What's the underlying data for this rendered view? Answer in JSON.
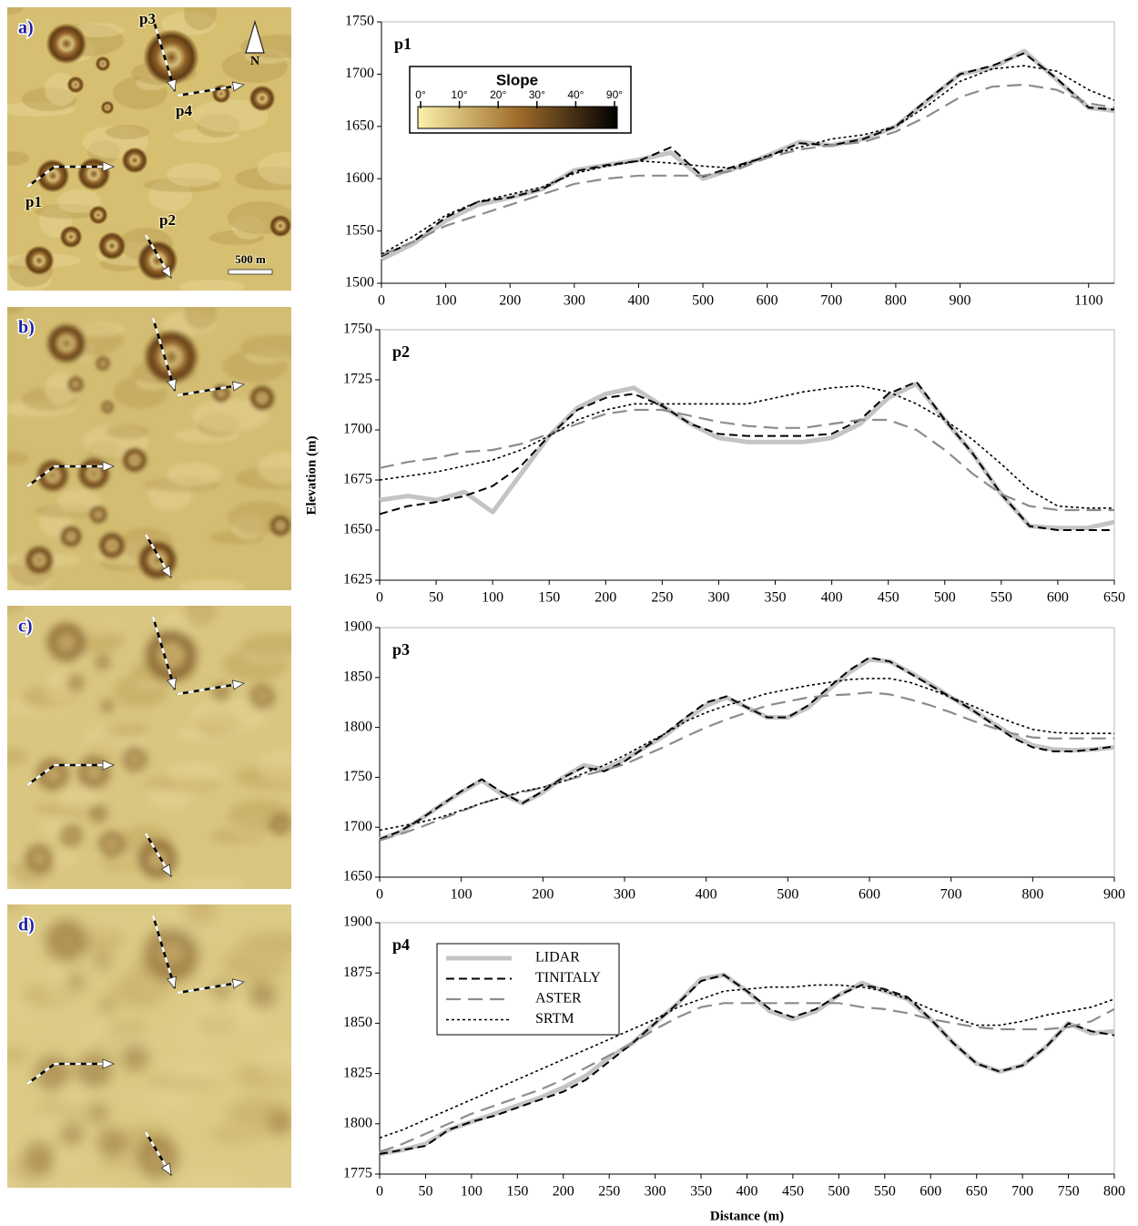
{
  "maps": [
    {
      "label": "a)",
      "annotations": [
        "p3",
        "p4",
        "p1",
        "p2",
        "N",
        "500 m"
      ]
    },
    {
      "label": "b)"
    },
    {
      "label": "c)"
    },
    {
      "label": "d)"
    }
  ],
  "chart_data": [
    {
      "type": "line",
      "title": "p1",
      "x": [
        0,
        50,
        100,
        150,
        200,
        250,
        300,
        350,
        400,
        450,
        500,
        550,
        600,
        650,
        700,
        750,
        800,
        850,
        900,
        950,
        1000,
        1050,
        1100,
        1140
      ],
      "xlim": [
        0,
        1140
      ],
      "xticks": [
        0,
        100,
        200,
        300,
        400,
        500,
        600,
        700,
        800,
        900,
        1100
      ],
      "ylim": [
        1500,
        1750
      ],
      "yticks": [
        1500,
        1550,
        1600,
        1650,
        1700,
        1750
      ],
      "colorbar": {
        "title": "Slope",
        "ticks": [
          "0°",
          "10°",
          "20°",
          "30°",
          "40°",
          "90°"
        ],
        "colors": [
          "#fbf2aa",
          "#a06d2c",
          "#000000"
        ]
      },
      "series": [
        {
          "color": "#c4c4c4",
          "style": "solid",
          "values": [
            1523,
            1538,
            1560,
            1575,
            1582,
            1590,
            1608,
            1613,
            1618,
            1625,
            1600,
            1610,
            1622,
            1635,
            1632,
            1638,
            1650,
            1675,
            1700,
            1706,
            1722,
            1695,
            1668,
            1665
          ]
        },
        {
          "color": "#000000",
          "style": "dashed",
          "values": [
            1526,
            1540,
            1563,
            1578,
            1582,
            1590,
            1607,
            1613,
            1617,
            1630,
            1602,
            1612,
            1621,
            1634,
            1632,
            1638,
            1650,
            1676,
            1700,
            1708,
            1720,
            1696,
            1668,
            1666
          ]
        },
        {
          "color": "#8c8c8c",
          "style": "long-dashed",
          "values": [
            1527,
            1540,
            1555,
            1565,
            1575,
            1585,
            1595,
            1600,
            1603,
            1603,
            1603,
            1608,
            1620,
            1628,
            1632,
            1635,
            1645,
            1660,
            1678,
            1688,
            1690,
            1685,
            1672,
            1668
          ]
        },
        {
          "color": "#000000",
          "style": "dotted",
          "values": [
            1528,
            1545,
            1565,
            1578,
            1585,
            1592,
            1605,
            1612,
            1617,
            1615,
            1612,
            1610,
            1622,
            1630,
            1638,
            1642,
            1650,
            1670,
            1693,
            1705,
            1708,
            1703,
            1685,
            1675
          ]
        }
      ]
    },
    {
      "type": "line",
      "title": "p2",
      "ylabel": "Elevation (m)",
      "x": [
        0,
        25,
        50,
        75,
        100,
        125,
        150,
        175,
        200,
        225,
        250,
        275,
        300,
        325,
        350,
        375,
        400,
        425,
        450,
        475,
        500,
        525,
        550,
        575,
        600,
        625,
        650
      ],
      "xlim": [
        0,
        650
      ],
      "xticks": [
        0,
        50,
        100,
        150,
        200,
        250,
        300,
        350,
        400,
        450,
        500,
        550,
        600,
        650
      ],
      "ylim": [
        1625,
        1750
      ],
      "yticks": [
        1625,
        1650,
        1675,
        1700,
        1725,
        1750
      ],
      "series": [
        {
          "color": "#c4c4c4",
          "style": "solid",
          "values": [
            1665,
            1667,
            1665,
            1669,
            1659,
            1678,
            1697,
            1711,
            1718,
            1721,
            1712,
            1703,
            1696,
            1694,
            1694,
            1694,
            1696,
            1703,
            1716,
            1723,
            1705,
            1688,
            1668,
            1652,
            1651,
            1651,
            1654
          ]
        },
        {
          "color": "#000000",
          "style": "dashed",
          "values": [
            1658,
            1662,
            1664,
            1667,
            1672,
            1682,
            1697,
            1710,
            1716,
            1718,
            1712,
            1703,
            1698,
            1697,
            1697,
            1697,
            1698,
            1705,
            1718,
            1724,
            1705,
            1688,
            1668,
            1652,
            1650,
            1650,
            1650
          ]
        },
        {
          "color": "#8c8c8c",
          "style": "long-dashed",
          "values": [
            1681,
            1684,
            1686,
            1689,
            1690,
            1693,
            1698,
            1703,
            1708,
            1710,
            1710,
            1707,
            1704,
            1702,
            1701,
            1701,
            1703,
            1705,
            1705,
            1700,
            1690,
            1678,
            1668,
            1662,
            1660,
            1660,
            1660
          ]
        },
        {
          "color": "#000000",
          "style": "dotted",
          "values": [
            1675,
            1677,
            1679,
            1682,
            1685,
            1690,
            1697,
            1705,
            1710,
            1713,
            1713,
            1713,
            1713,
            1713,
            1716,
            1719,
            1721,
            1722,
            1719,
            1713,
            1705,
            1695,
            1683,
            1670,
            1662,
            1661,
            1661
          ]
        }
      ]
    },
    {
      "type": "line",
      "title": "p3",
      "x": [
        0,
        25,
        50,
        75,
        100,
        125,
        150,
        175,
        200,
        225,
        250,
        275,
        300,
        325,
        350,
        375,
        400,
        425,
        450,
        475,
        500,
        525,
        550,
        575,
        600,
        625,
        650,
        675,
        700,
        725,
        750,
        775,
        800,
        825,
        850,
        875,
        900
      ],
      "xlim": [
        0,
        900
      ],
      "xticks": [
        0,
        100,
        200,
        300,
        400,
        500,
        600,
        700,
        800,
        900
      ],
      "ylim": [
        1650,
        1900
      ],
      "yticks": [
        1650,
        1700,
        1750,
        1800,
        1850,
        1900
      ],
      "series": [
        {
          "color": "#c4c4c4",
          "style": "solid",
          "values": [
            1688,
            1695,
            1708,
            1722,
            1735,
            1747,
            1733,
            1724,
            1735,
            1750,
            1762,
            1758,
            1768,
            1780,
            1792,
            1808,
            1822,
            1830,
            1820,
            1810,
            1810,
            1820,
            1838,
            1855,
            1868,
            1866,
            1855,
            1843,
            1830,
            1818,
            1805,
            1792,
            1782,
            1778,
            1777,
            1778,
            1780
          ]
        },
        {
          "color": "#000000",
          "style": "dashed",
          "values": [
            1688,
            1696,
            1708,
            1722,
            1736,
            1748,
            1735,
            1724,
            1736,
            1750,
            1760,
            1756,
            1766,
            1780,
            1794,
            1810,
            1825,
            1831,
            1820,
            1810,
            1810,
            1822,
            1840,
            1857,
            1870,
            1866,
            1854,
            1842,
            1830,
            1818,
            1804,
            1790,
            1780,
            1776,
            1776,
            1778,
            1781
          ]
        },
        {
          "color": "#8c8c8c",
          "style": "long-dashed",
          "values": [
            1687,
            1693,
            1700,
            1708,
            1716,
            1724,
            1730,
            1735,
            1740,
            1746,
            1752,
            1757,
            1763,
            1772,
            1781,
            1791,
            1800,
            1808,
            1815,
            1822,
            1826,
            1830,
            1832,
            1833,
            1835,
            1833,
            1828,
            1822,
            1815,
            1807,
            1800,
            1794,
            1790,
            1789,
            1789,
            1789,
            1789
          ]
        },
        {
          "color": "#000000",
          "style": "dotted",
          "values": [
            1697,
            1701,
            1705,
            1710,
            1717,
            1724,
            1730,
            1736,
            1740,
            1746,
            1754,
            1762,
            1772,
            1783,
            1794,
            1806,
            1815,
            1822,
            1828,
            1834,
            1838,
            1842,
            1845,
            1848,
            1849,
            1849,
            1845,
            1838,
            1830,
            1822,
            1813,
            1805,
            1798,
            1795,
            1794,
            1794,
            1794
          ]
        }
      ]
    },
    {
      "type": "line",
      "title": "p4",
      "xlabel": "Distance (m)",
      "legend": "upper left",
      "x": [
        0,
        25,
        50,
        75,
        100,
        125,
        150,
        175,
        200,
        225,
        250,
        275,
        300,
        325,
        350,
        375,
        400,
        425,
        450,
        475,
        500,
        525,
        550,
        575,
        600,
        625,
        650,
        675,
        700,
        725,
        750,
        775,
        800
      ],
      "xlim": [
        0,
        800
      ],
      "xticks": [
        0,
        50,
        100,
        150,
        200,
        250,
        300,
        350,
        400,
        450,
        500,
        550,
        600,
        650,
        700,
        750,
        800
      ],
      "ylim": [
        1775,
        1900
      ],
      "yticks": [
        1775,
        1800,
        1825,
        1850,
        1875,
        1900
      ],
      "series": [
        {
          "name": "LIDAR",
          "color": "#c4c4c4",
          "style": "solid",
          "values": [
            1785,
            1787,
            1790,
            1797,
            1801,
            1805,
            1809,
            1813,
            1818,
            1824,
            1833,
            1840,
            1850,
            1860,
            1872,
            1874,
            1866,
            1856,
            1852,
            1856,
            1864,
            1870,
            1866,
            1862,
            1852,
            1840,
            1830,
            1826,
            1829,
            1838,
            1850,
            1845,
            1846
          ]
        },
        {
          "name": "TINITALY",
          "color": "#000000",
          "style": "dashed",
          "values": [
            1785,
            1787,
            1789,
            1797,
            1801,
            1804,
            1808,
            1812,
            1816,
            1822,
            1831,
            1840,
            1850,
            1860,
            1871,
            1874,
            1866,
            1857,
            1853,
            1857,
            1864,
            1869,
            1867,
            1863,
            1852,
            1840,
            1830,
            1826,
            1829,
            1838,
            1850,
            1846,
            1844
          ]
        },
        {
          "name": "ASTER",
          "color": "#8c8c8c",
          "style": "long-dashed",
          "values": [
            1786,
            1790,
            1795,
            1800,
            1805,
            1809,
            1813,
            1817,
            1822,
            1828,
            1834,
            1840,
            1847,
            1853,
            1858,
            1860,
            1860,
            1860,
            1860,
            1860,
            1860,
            1858,
            1857,
            1855,
            1852,
            1850,
            1848,
            1847,
            1847,
            1847,
            1848,
            1851,
            1857
          ]
        },
        {
          "name": "SRTM",
          "color": "#000000",
          "style": "dotted",
          "values": [
            1793,
            1797,
            1802,
            1807,
            1812,
            1817,
            1822,
            1827,
            1832,
            1837,
            1842,
            1847,
            1852,
            1858,
            1862,
            1866,
            1867,
            1868,
            1868,
            1869,
            1869,
            1868,
            1866,
            1862,
            1857,
            1853,
            1849,
            1849,
            1851,
            1854,
            1856,
            1858,
            1862
          ]
        }
      ]
    }
  ]
}
